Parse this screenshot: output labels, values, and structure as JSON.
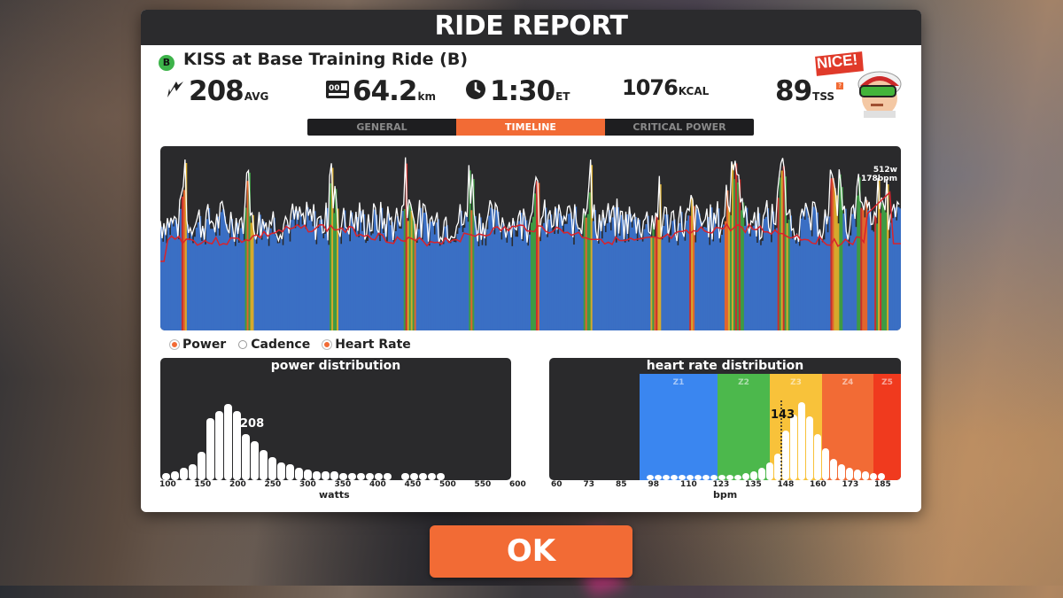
{
  "dialog": {
    "title": "RIDE REPORT"
  },
  "ride": {
    "badge": "B",
    "name": "KISS at Base Training Ride (B)"
  },
  "stats": {
    "power": {
      "value": "208",
      "unit": "AVG",
      "icon": "lightning-bolt-icon"
    },
    "distance": {
      "value": "64.2",
      "unit": "km",
      "icon": "odometer-icon"
    },
    "time": {
      "value": "1:30",
      "unit": "ET",
      "icon": "clock-icon"
    },
    "calories": {
      "value": "1076",
      "unit": "KCAL"
    },
    "tss": {
      "value": "89",
      "unit": "TSS",
      "help": "?"
    }
  },
  "nice_badge": "NICE!",
  "tabs": [
    {
      "label": "GENERAL",
      "active": false
    },
    {
      "label": "TIMELINE",
      "active": true
    },
    {
      "label": "CRITICAL POWER",
      "active": false
    }
  ],
  "timeline": {
    "peak_power": "512w",
    "peak_hr": "178bpm",
    "colors": {
      "hr_line": "#d9232b",
      "power_blue": "#3a6fc4",
      "power_green": "#3e9a44",
      "power_yellow": "#d6a92c",
      "power_orange": "#e0652e",
      "power_red": "#c9302c"
    }
  },
  "legend": [
    {
      "label": "Power",
      "marker": "filled-orange"
    },
    {
      "label": "Cadence",
      "marker": "hollow-white"
    },
    {
      "label": "Heart Rate",
      "marker": "filled-orange"
    }
  ],
  "power_distribution": {
    "title": "power distribution",
    "avg_label": "208",
    "xlabel": "watts",
    "ticks": [
      "100",
      "150",
      "200",
      "250",
      "300",
      "350",
      "400",
      "450",
      "500",
      "550",
      "600"
    ]
  },
  "hr_distribution": {
    "title": "heart rate distribution",
    "avg_label": "143",
    "xlabel": "bpm",
    "ticks": [
      "60",
      "73",
      "85",
      "98",
      "110",
      "123",
      "135",
      "148",
      "160",
      "173",
      "185"
    ],
    "zones": [
      {
        "label": "Z1",
        "color": "#3a86f0"
      },
      {
        "label": "Z2",
        "color": "#4cb84c"
      },
      {
        "label": "Z3",
        "color": "#f8c23a"
      },
      {
        "label": "Z4",
        "color": "#f26b35"
      },
      {
        "label": "Z5",
        "color": "#f03a1e"
      }
    ]
  },
  "ok_button": "OK"
}
